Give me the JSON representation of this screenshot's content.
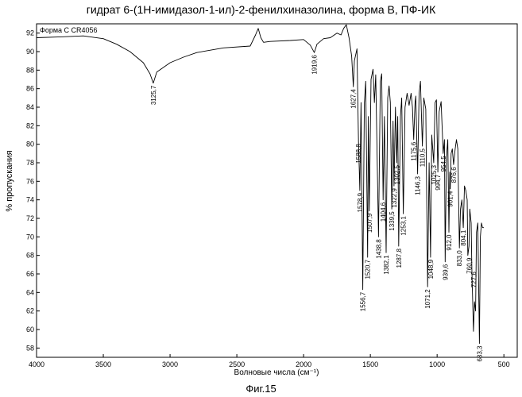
{
  "title": "гидрат 6-(1Н-имидазол-1-ил)-2-фенилхиназолина, форма B, ПФ-ИК",
  "caption": "Фиг.15",
  "chart_data": {
    "type": "line",
    "legend_label": "Форма C CR4056",
    "xlabel": "Волновые числа (см⁻¹)",
    "ylabel": "% пропускания",
    "xlim": [
      4000,
      400
    ],
    "ylim": [
      57,
      93
    ],
    "x_reversed": true,
    "grid": false,
    "x_ticks": [
      4000,
      3500,
      3000,
      2500,
      2000,
      1500,
      1000,
      500
    ],
    "y_ticks": [
      58,
      60,
      62,
      64,
      66,
      68,
      70,
      72,
      74,
      76,
      78,
      80,
      82,
      84,
      86,
      88,
      90,
      92
    ],
    "series": [
      {
        "x": [
          4000,
          3800,
          3650,
          3500,
          3400,
          3300,
          3200,
          3150,
          3125.7,
          3100,
          3000,
          2900,
          2800,
          2600,
          2400,
          2360,
          2340,
          2320,
          2300,
          2250,
          2100,
          2000,
          1950,
          1919.6,
          1900,
          1850,
          1800,
          1750,
          1720,
          1700,
          1680,
          1660,
          1640,
          1627.4,
          1620,
          1600,
          1588.8,
          1578.9,
          1570,
          1556.7,
          1545,
          1535,
          1520.7,
          1515,
          1507.9,
          1495,
          1480,
          1470,
          1460,
          1438.8,
          1425,
          1415,
          1404.6,
          1395,
          1382.1,
          1370,
          1360,
          1350,
          1339.5,
          1330,
          1322.9,
          1312,
          1302.5,
          1295,
          1287.8,
          1275,
          1265,
          1253.1,
          1240,
          1225,
          1210,
          1195,
          1185,
          1175.6,
          1165,
          1160,
          1146.3,
          1135,
          1125,
          1110.5,
          1100,
          1085,
          1071.2,
          1060,
          1048.9,
          1040,
          1025.3,
          1015,
          1005,
          994.7,
          985,
          970,
          954.5,
          945,
          939.6,
          930,
          920,
          912,
          905,
          901.4,
          895,
          886,
          876.6,
          865,
          855,
          845,
          833,
          825,
          815,
          804.1,
          795,
          785,
          775,
          770,
          760.9,
          755,
          745,
          740,
          727.6,
          720,
          712,
          705,
          695,
          683.3,
          676,
          668,
          660,
          650
        ],
        "y": [
          91.5,
          91.6,
          91.7,
          91.4,
          90.8,
          90.0,
          88.8,
          87.6,
          86.6,
          87.8,
          88.8,
          89.4,
          89.9,
          90.4,
          90.6,
          91.8,
          92.5,
          91.5,
          91.0,
          91.1,
          91.2,
          91.3,
          90.7,
          89.9,
          90.8,
          91.4,
          91.5,
          92.0,
          91.8,
          92.5,
          92.9,
          91.5,
          89.5,
          86.2,
          89.0,
          90.3,
          80.3,
          75.0,
          84.5,
          64.3,
          84.5,
          86.8,
          67.8,
          83.0,
          72.8,
          87.0,
          88.1,
          84.5,
          87.5,
          70.0,
          86.8,
          87.6,
          74.0,
          83.0,
          68.3,
          85.0,
          86.3,
          84.5,
          73.0,
          82.5,
          75.5,
          84.0,
          78.0,
          83.0,
          69.0,
          83.0,
          85.0,
          72.5,
          84.0,
          85.5,
          84.2,
          85.5,
          84.0,
          80.5,
          84.5,
          85.2,
          76.8,
          85.5,
          86.8,
          79.8,
          85.0,
          83.8,
          64.6,
          78.0,
          67.8,
          81.0,
          78.0,
          84.5,
          84.8,
          77.0,
          83.5,
          84.6,
          79.0,
          80.5,
          67.3,
          78.5,
          80.5,
          70.5,
          77.0,
          75.2,
          79.0,
          79.5,
          77.8,
          79.5,
          80.5,
          79.5,
          68.8,
          73.0,
          74.0,
          71.0,
          75.5,
          75.0,
          74.0,
          68.0,
          69.0,
          73.0,
          71.5,
          66.5,
          59.8,
          63.0,
          62.0,
          70.5,
          71.5,
          58.5,
          70.0,
          71.5,
          71.0,
          71.0
        ]
      }
    ],
    "peak_labels": [
      {
        "x": 3125.7,
        "y": 86.6,
        "label": "3125,7"
      },
      {
        "x": 1919.6,
        "y": 89.9,
        "label": "1919,6"
      },
      {
        "x": 1627.4,
        "y": 86.2,
        "label": "1627,4"
      },
      {
        "x": 1588.8,
        "y": 80.3,
        "label": "1588,8"
      },
      {
        "x": 1578.9,
        "y": 75.0,
        "label": "1578,9"
      },
      {
        "x": 1556.7,
        "y": 64.3,
        "label": "1556,7"
      },
      {
        "x": 1520.7,
        "y": 67.8,
        "label": "1520,7"
      },
      {
        "x": 1507.9,
        "y": 72.8,
        "label": "1507,9"
      },
      {
        "x": 1438.8,
        "y": 70.0,
        "label": "1438,8"
      },
      {
        "x": 1404.6,
        "y": 74.0,
        "label": "1404,6"
      },
      {
        "x": 1382.1,
        "y": 68.3,
        "label": "1382,1"
      },
      {
        "x": 1339.5,
        "y": 73.0,
        "label": "1339,5"
      },
      {
        "x": 1322.9,
        "y": 75.5,
        "label": "1322,9"
      },
      {
        "x": 1302.5,
        "y": 78.0,
        "label": "1302,5"
      },
      {
        "x": 1287.8,
        "y": 69.0,
        "label": "1287,8"
      },
      {
        "x": 1253.1,
        "y": 72.5,
        "label": "1253,1"
      },
      {
        "x": 1175.6,
        "y": 80.5,
        "label": "1175,6"
      },
      {
        "x": 1146.3,
        "y": 76.8,
        "label": "1146,3"
      },
      {
        "x": 1110.5,
        "y": 79.8,
        "label": "1110,5"
      },
      {
        "x": 1071.2,
        "y": 64.6,
        "label": "1071,2"
      },
      {
        "x": 1048.9,
        "y": 67.8,
        "label": "1048,9"
      },
      {
        "x": 1025.3,
        "y": 78.0,
        "label": "1025,3"
      },
      {
        "x": 994.7,
        "y": 77.0,
        "label": "994,7"
      },
      {
        "x": 954.5,
        "y": 79.0,
        "label": "954,5"
      },
      {
        "x": 939.6,
        "y": 67.3,
        "label": "939,6"
      },
      {
        "x": 912.0,
        "y": 70.5,
        "label": "912,0"
      },
      {
        "x": 901.4,
        "y": 75.2,
        "label": "901,4"
      },
      {
        "x": 876.6,
        "y": 77.8,
        "label": "876,6"
      },
      {
        "x": 833.0,
        "y": 68.8,
        "label": "833,0"
      },
      {
        "x": 804.1,
        "y": 71.0,
        "label": "804,1"
      },
      {
        "x": 760.9,
        "y": 68.0,
        "label": "760,9"
      },
      {
        "x": 727.6,
        "y": 66.5,
        "label": "727,6"
      },
      {
        "x": 683.3,
        "y": 58.5,
        "label": "683,3"
      }
    ]
  }
}
